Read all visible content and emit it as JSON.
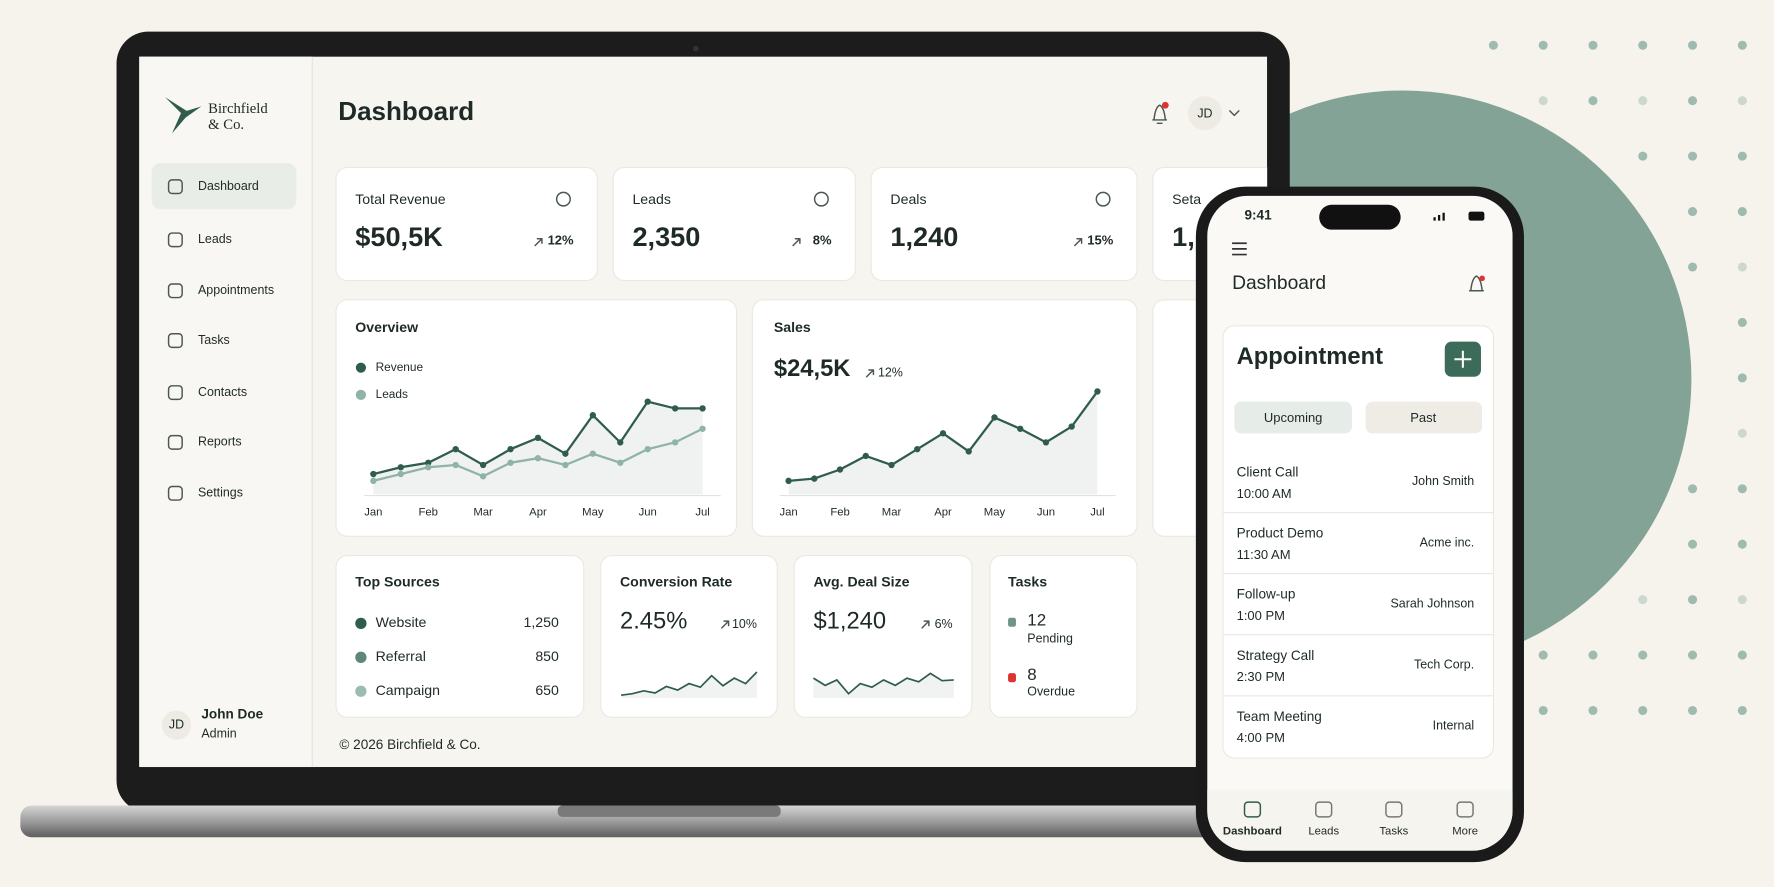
{
  "laptop": {
    "brand": {
      "line1": "Birchfield",
      "line2": "& Co."
    },
    "nav": [
      "Dashboard",
      "Leads",
      "Appointments",
      "Tasks",
      "Contacts",
      "Reports",
      "Settings"
    ],
    "user": {
      "initials": "JD",
      "name": "John Doe",
      "role": "Admin"
    },
    "title": "Dashboard",
    "header_initials": "JD",
    "stats": [
      {
        "label": "Total Revenue",
        "value": "$50,5K",
        "change": "12%"
      },
      {
        "label": "Leads",
        "value": "2,350",
        "change": "8%"
      },
      {
        "label": "Deals",
        "value": "1,240",
        "change": "15%"
      },
      {
        "label": "Seta",
        "value": "1,"
      }
    ],
    "overview": {
      "type": "line",
      "title": "Overview",
      "x": [
        0,
        0.5,
        1,
        1.5,
        2,
        2.5,
        3,
        3.5,
        4,
        4.5,
        5,
        5.5,
        6
      ],
      "xlim": [
        0,
        6
      ],
      "ylim": [
        0,
        100
      ],
      "xticks": [
        {
          "value": 0,
          "label": "Jan"
        },
        {
          "value": 1,
          "label": "Feb"
        },
        {
          "value": 2,
          "label": "Mar"
        },
        {
          "value": 3,
          "label": "Apr"
        },
        {
          "value": 4,
          "label": "May"
        },
        {
          "value": 5,
          "label": "Jun"
        },
        {
          "value": 6,
          "label": "Jul"
        }
      ],
      "series": [
        {
          "name": "Revenue",
          "color": "#2f5c4c",
          "values": [
            18,
            24,
            28,
            40,
            26,
            40,
            50,
            36,
            70,
            46,
            82,
            76,
            76
          ]
        },
        {
          "name": "Leads",
          "color": "#8fb3a5",
          "values": [
            12,
            18,
            24,
            26,
            16,
            28,
            32,
            26,
            36,
            28,
            40,
            46,
            58
          ]
        }
      ]
    },
    "sales": {
      "type": "line",
      "title": "Sales",
      "value": "$24,5K",
      "change": "12%",
      "x": [
        0,
        0.5,
        1,
        1.5,
        2,
        2.5,
        3,
        3.5,
        4,
        4.5,
        5,
        5.5,
        6
      ],
      "xlim": [
        0,
        6
      ],
      "ylim": [
        0,
        100
      ],
      "xticks": [
        {
          "value": 0,
          "label": "Jan"
        },
        {
          "value": 1,
          "label": "Feb"
        },
        {
          "value": 2,
          "label": "Mar"
        },
        {
          "value": 3,
          "label": "Apr"
        },
        {
          "value": 4,
          "label": "May"
        },
        {
          "value": 5,
          "label": "Jun"
        },
        {
          "value": 6,
          "label": "Jul"
        }
      ],
      "series": [
        {
          "name": "Sales",
          "color": "#2f5c4c",
          "values": [
            12,
            14,
            22,
            34,
            26,
            40,
            54,
            38,
            68,
            58,
            46,
            60,
            91
          ]
        }
      ]
    },
    "sources": {
      "title": "Top Sources",
      "rows": [
        {
          "name": "Website",
          "value": "1,250",
          "color": "#2f5c4c"
        },
        {
          "name": "Referral",
          "value": "850",
          "color": "#5f8777"
        },
        {
          "name": "Campaign",
          "value": "650",
          "color": "#9dbcb0"
        }
      ]
    },
    "conversion": {
      "title": "Conversion Rate",
      "value": "2.45%",
      "change": "10%",
      "ylim": [
        0,
        100
      ],
      "values": [
        8,
        12,
        20,
        14,
        32,
        22,
        40,
        30,
        62,
        34,
        55,
        40,
        72
      ]
    },
    "deal_size": {
      "title": "Avg. Deal Size",
      "value": "$1,240",
      "change": "6%",
      "ylim": [
        0,
        100
      ],
      "values": [
        55,
        35,
        50,
        12,
        40,
        30,
        50,
        35,
        55,
        45,
        68,
        48,
        50
      ]
    },
    "tasks": {
      "title": "Tasks",
      "pending": {
        "count": "12",
        "label": "Pending"
      },
      "overdue": {
        "count": "8",
        "label": "Overdue"
      }
    },
    "footer": "© 2026 Birchfield & Co."
  },
  "phone": {
    "time": "9:41",
    "title": "Dashboard",
    "card_title": "Appointment",
    "tabs": [
      "Upcoming",
      "Past"
    ],
    "appointments": [
      {
        "title": "Client Call",
        "time": "10:00 AM",
        "who": "John Smith"
      },
      {
        "title": "Product Demo",
        "time": "11:30 AM",
        "who": "Acme inc."
      },
      {
        "title": "Follow-up",
        "time": "1:00 PM",
        "who": "Sarah Johnson"
      },
      {
        "title": "Strategy Call",
        "time": "2:30 PM",
        "who": "Tech Corp."
      },
      {
        "title": "Team Meeting",
        "time": "4:00 PM",
        "who": "Internal"
      }
    ],
    "nav": [
      "Dashboard",
      "Leads",
      "Tasks",
      "More"
    ]
  }
}
